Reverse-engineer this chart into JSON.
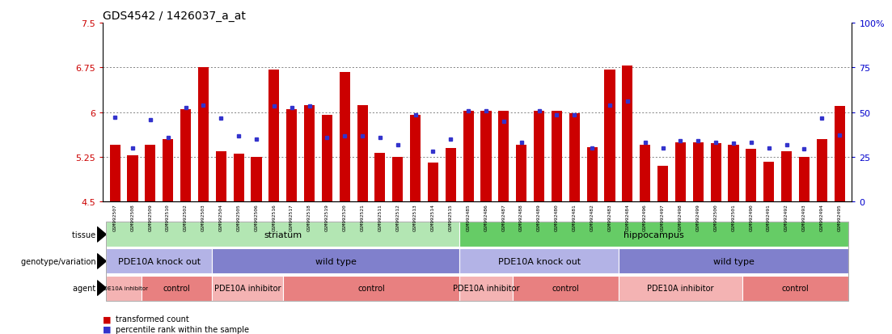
{
  "title": "GDS4542 / 1426037_a_at",
  "samples": [
    "GSM992507",
    "GSM992508",
    "GSM992509",
    "GSM992510",
    "GSM992502",
    "GSM992503",
    "GSM992504",
    "GSM992505",
    "GSM992506",
    "GSM992516",
    "GSM992517",
    "GSM992518",
    "GSM992519",
    "GSM992520",
    "GSM992521",
    "GSM992511",
    "GSM992512",
    "GSM992513",
    "GSM992514",
    "GSM992515",
    "GSM992485",
    "GSM992486",
    "GSM992487",
    "GSM992488",
    "GSM992489",
    "GSM992480",
    "GSM992481",
    "GSM992482",
    "GSM992483",
    "GSM992484",
    "GSM992496",
    "GSM992497",
    "GSM992498",
    "GSM992499",
    "GSM992500",
    "GSM992501",
    "GSM992490",
    "GSM992491",
    "GSM992492",
    "GSM992493",
    "GSM992494",
    "GSM992495"
  ],
  "bar_values": [
    5.45,
    5.28,
    5.45,
    5.55,
    6.05,
    6.75,
    5.35,
    5.3,
    5.25,
    6.72,
    6.05,
    6.12,
    5.95,
    6.68,
    6.12,
    5.32,
    5.25,
    5.95,
    5.15,
    5.4,
    6.02,
    6.02,
    6.02,
    5.45,
    6.02,
    6.02,
    5.98,
    5.42,
    6.72,
    6.78,
    5.45,
    5.1,
    5.5,
    5.5,
    5.48,
    5.45,
    5.38,
    5.17,
    5.35,
    5.25,
    5.55,
    6.1
  ],
  "percentile_values": [
    5.92,
    5.4,
    5.88,
    5.58,
    6.08,
    6.12,
    5.9,
    5.6,
    5.55,
    6.1,
    6.08,
    6.1,
    5.58,
    5.6,
    5.6,
    5.58,
    5.45,
    5.95,
    5.35,
    5.55,
    6.02,
    6.02,
    5.85,
    5.5,
    6.02,
    5.95,
    5.95,
    5.4,
    6.12,
    6.18,
    5.5,
    5.4,
    5.52,
    5.52,
    5.5,
    5.48,
    5.5,
    5.4,
    5.45,
    5.38,
    5.9,
    5.62
  ],
  "ymin": 4.5,
  "ymax": 7.5,
  "yticks": [
    4.5,
    5.25,
    6.0,
    6.75,
    7.5
  ],
  "ytick_labels": [
    "4.5",
    "5.25",
    "6",
    "6.75",
    "7.5"
  ],
  "right_yticks": [
    0,
    25,
    50,
    75,
    100
  ],
  "right_ytick_labels": [
    "0",
    "25",
    "50",
    "75",
    "100%"
  ],
  "bar_color": "#cc0000",
  "dot_color": "#3333cc",
  "bar_base": 4.5,
  "tissue_regions": [
    {
      "label": "striatum",
      "start": 0,
      "end": 19,
      "color": "#b3e6b3"
    },
    {
      "label": "hippocampus",
      "start": 20,
      "end": 41,
      "color": "#66cc66"
    }
  ],
  "genotype_regions": [
    {
      "label": "PDE10A knock out",
      "start": 0,
      "end": 5,
      "color": "#b3b3e6"
    },
    {
      "label": "wild type",
      "start": 6,
      "end": 19,
      "color": "#8080cc"
    },
    {
      "label": "PDE10A knock out",
      "start": 20,
      "end": 28,
      "color": "#b3b3e6"
    },
    {
      "label": "wild type",
      "start": 29,
      "end": 41,
      "color": "#8080cc"
    }
  ],
  "agent_regions": [
    {
      "label": "PDE10A inhibitor",
      "start": 0,
      "end": 1,
      "color": "#f4b3b3",
      "fontsize": 5
    },
    {
      "label": "control",
      "start": 2,
      "end": 5,
      "color": "#e88080",
      "fontsize": 7
    },
    {
      "label": "PDE10A inhibitor",
      "start": 6,
      "end": 9,
      "color": "#f4b3b3",
      "fontsize": 7
    },
    {
      "label": "control",
      "start": 10,
      "end": 19,
      "color": "#e88080",
      "fontsize": 7
    },
    {
      "label": "PDE10A inhibitor",
      "start": 20,
      "end": 22,
      "color": "#f4b3b3",
      "fontsize": 7
    },
    {
      "label": "control",
      "start": 23,
      "end": 28,
      "color": "#e88080",
      "fontsize": 7
    },
    {
      "label": "PDE10A inhibitor",
      "start": 29,
      "end": 35,
      "color": "#f4b3b3",
      "fontsize": 7
    },
    {
      "label": "control",
      "start": 36,
      "end": 41,
      "color": "#e88080",
      "fontsize": 7
    }
  ],
  "legend_items": [
    {
      "label": "transformed count",
      "color": "#cc0000"
    },
    {
      "label": "percentile rank within the sample",
      "color": "#3333cc"
    }
  ],
  "background_color": "#ffffff",
  "grid_color": "#555555",
  "tick_color": "#cc0000",
  "right_tick_color": "#0000cc",
  "row_labels": [
    "tissue",
    "genotype/variation",
    "agent"
  ]
}
